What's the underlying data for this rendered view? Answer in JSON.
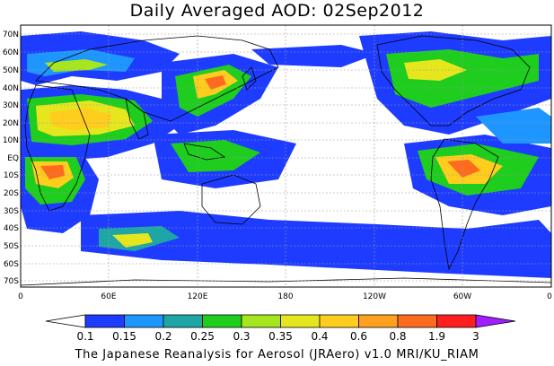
{
  "title": "Daily Averaged AOD: 02Sep2012",
  "credit": "The Japanese Reanalysis for Aerosol (JRAero) v1.0 MRI/KU_RIAM",
  "lat_ticks": [
    "70N",
    "60N",
    "50N",
    "40N",
    "30N",
    "20N",
    "10N",
    "EQ",
    "10S",
    "20S",
    "30S",
    "40S",
    "50S",
    "60S",
    "70S"
  ],
  "lon_ticks": [
    "0",
    "60E",
    "120E",
    "180",
    "120W",
    "60W",
    "0"
  ],
  "colorbar": {
    "labels": [
      "0.1",
      "0.15",
      "0.2",
      "0.25",
      "0.3",
      "0.35",
      "0.4",
      "0.6",
      "0.8",
      "1.9",
      "3"
    ],
    "colors": [
      "#1e3cff",
      "#1e96ff",
      "#1ea5a5",
      "#1ecd1e",
      "#a5e61e",
      "#e6e61e",
      "#ffcd1e",
      "#ffa01e",
      "#ff6b1e",
      "#ff1e1e"
    ],
    "under_color": "#ffffff",
    "over_color": "#a01eff"
  }
}
